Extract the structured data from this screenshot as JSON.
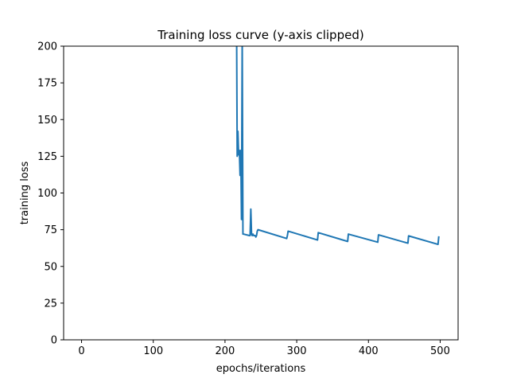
{
  "chart_data": {
    "type": "line",
    "title": "Training loss curve (y-axis clipped)",
    "xlabel": "epochs/iterations",
    "ylabel": "training loss",
    "xlim": [
      -25,
      525
    ],
    "ylim": [
      0,
      200
    ],
    "xticks": [
      0,
      100,
      200,
      300,
      400,
      500
    ],
    "yticks": [
      0,
      25,
      50,
      75,
      100,
      125,
      150,
      175,
      200
    ],
    "xtick_labels": [
      "0",
      "100",
      "200",
      "300",
      "400",
      "500"
    ],
    "ytick_labels": [
      "0",
      "25",
      "50",
      "75",
      "100",
      "125",
      "150",
      "175",
      "200"
    ],
    "grid": false,
    "series": [
      {
        "color": "#1f77b4",
        "x": [
          216,
          217,
          218,
          219,
          220,
          221,
          222,
          223,
          224,
          225,
          226,
          234,
          235,
          236,
          237,
          238,
          239,
          240,
          241,
          242,
          243,
          244,
          245,
          246,
          286,
          287,
          288,
          329,
          330,
          371,
          372,
          413,
          414,
          455,
          456,
          497,
          498
        ],
        "y": [
          230,
          125,
          142,
          126,
          129,
          112,
          129,
          82,
          205,
          72,
          72,
          71,
          71,
          89,
          72,
          71,
          72,
          71,
          71,
          71,
          70,
          71,
          74,
          75,
          69,
          71,
          74,
          68,
          73,
          67,
          72,
          66.5,
          71.5,
          65.8,
          70.8,
          65,
          70
        ]
      }
    ]
  }
}
